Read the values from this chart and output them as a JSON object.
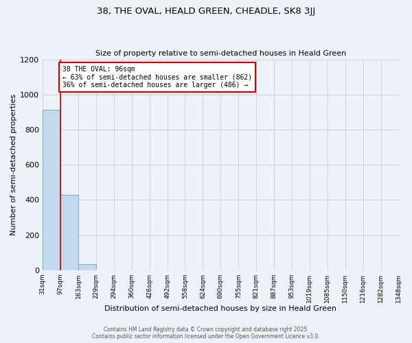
{
  "title1": "38, THE OVAL, HEALD GREEN, CHEADLE, SK8 3JJ",
  "title2": "Size of property relative to semi-detached houses in Heald Green",
  "xlabel": "Distribution of semi-detached houses by size in Heald Green",
  "ylabel": "Number of semi-detached properties",
  "bin_labels": [
    "31sqm",
    "97sqm",
    "163sqm",
    "229sqm",
    "294sqm",
    "360sqm",
    "426sqm",
    "492sqm",
    "558sqm",
    "624sqm",
    "690sqm",
    "755sqm",
    "821sqm",
    "887sqm",
    "953sqm",
    "1019sqm",
    "1085sqm",
    "1150sqm",
    "1216sqm",
    "1282sqm",
    "1348sqm"
  ],
  "bar_values": [
    912,
    430,
    33,
    0,
    0,
    0,
    0,
    0,
    0,
    0,
    0,
    0,
    0,
    0,
    0,
    0,
    0,
    0,
    0,
    0
  ],
  "bar_color": "#c5d8ee",
  "bar_edge_color": "#7aaccc",
  "highlight_color": "#cc0000",
  "annotation_title": "38 THE OVAL: 96sqm",
  "annotation_line1": "← 63% of semi-detached houses are smaller (862)",
  "annotation_line2": "36% of semi-detached houses are larger (486) →",
  "annotation_box_color": "#ffffff",
  "annotation_box_edge": "#cc0000",
  "ylim": [
    0,
    1200
  ],
  "yticks": [
    0,
    200,
    400,
    600,
    800,
    1000,
    1200
  ],
  "background_color": "#edf1f8",
  "grid_color": "#c8cdd8",
  "footer1": "Contains HM Land Registry data © Crown copyright and database right 2025.",
  "footer2": "Contains public sector information licensed under the Open Government Licence v3.0."
}
